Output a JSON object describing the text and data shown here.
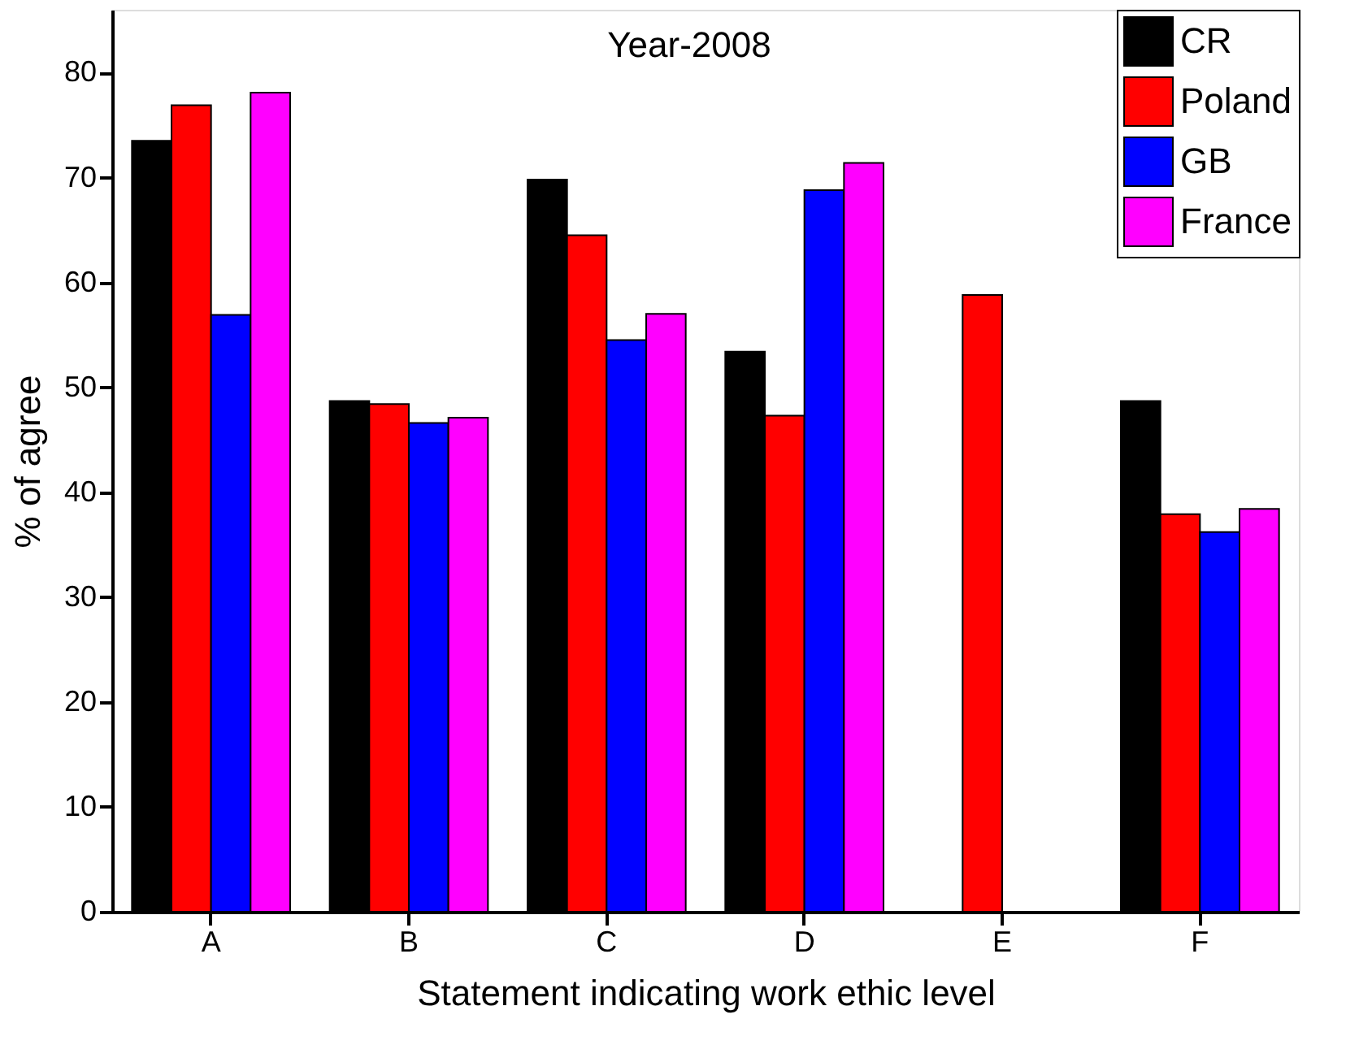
{
  "chart_data": {
    "type": "bar",
    "title": "Year-2008",
    "xlabel": "Statement indicating work ethic level",
    "ylabel": "% of agree",
    "categories": [
      "A",
      "B",
      "C",
      "D",
      "E",
      "F"
    ],
    "series": [
      {
        "name": "CR",
        "color": "#000000",
        "values": [
          73.5,
          48.7,
          69.8,
          53.4,
          null,
          48.7
        ]
      },
      {
        "name": "Poland",
        "color": "#ff0000",
        "values": [
          76.9,
          48.4,
          64.5,
          47.3,
          58.8,
          37.9
        ]
      },
      {
        "name": "GB",
        "color": "#0000ff",
        "values": [
          56.9,
          46.6,
          54.5,
          68.8,
          null,
          36.2
        ]
      },
      {
        "name": "France",
        "color": "#ff00ff",
        "values": [
          78.1,
          47.1,
          57.0,
          71.4,
          null,
          38.4
        ]
      }
    ],
    "ylim": [
      0,
      86
    ],
    "yticks": [
      0,
      10,
      20,
      30,
      40,
      50,
      60,
      70,
      80
    ],
    "grid": false,
    "legend": "top right"
  }
}
